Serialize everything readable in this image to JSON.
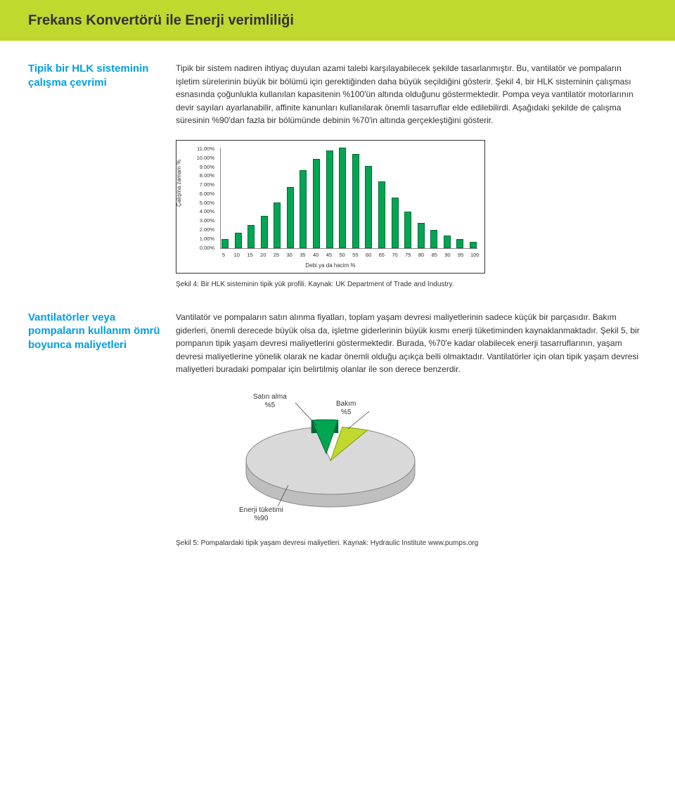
{
  "page": {
    "header_title": "Frekans Konvertörü ile Enerji verimliliği"
  },
  "section1": {
    "title": "Tipik bir HLK sisteminin çalışma çevrimi",
    "body": "Tipik bir sistem nadiren ihtiyaç duyulan azami talebi karşılayabilecek şekilde tasarlanmıştır. Bu, vantilatör ve pompaların işletim sürelerinin büyük bir bölümü için gerektiğinden daha büyük seçildiğini gösterir. Şekil 4, bir HLK sisteminin çalışması esnasında çoğunlukla kullanılan kapasitenin  %100'ün altında olduğunu göstermektedir. Pompa veya vantilatör motorlarının devir sayıları ayarlanabilir, affinite kanunları kullanılarak önemli tasarruflar elde edilebilirdi. Aşağıdaki şekilde de çalışma süresinin %90'dan fazla bir bölümünde debinin %70'in altında gerçekleştiğini gösterir.",
    "chart": {
      "type": "bar",
      "y_axis_label": "Çalışma zamanı %",
      "x_axis_label": "Debi ya da hacim %",
      "y_ticks": [
        "11.00%",
        "10.00%",
        "9.00%",
        "8.00%",
        "7.00%",
        "6.00%",
        "5.00%",
        "4.00%",
        "3.00%",
        "2.00%",
        "1.00%",
        "0.00%"
      ],
      "x_ticks": [
        "5",
        "10",
        "15",
        "20",
        "25",
        "30",
        "35",
        "40",
        "45",
        "50",
        "55",
        "60",
        "65",
        "70",
        "75",
        "80",
        "85",
        "90",
        "95",
        "100"
      ],
      "values": [
        1.0,
        1.7,
        2.5,
        3.5,
        5.0,
        6.7,
        8.5,
        9.8,
        10.7,
        11.0,
        10.3,
        9.0,
        7.3,
        5.5,
        4.0,
        2.8,
        2.0,
        1.4,
        1.0,
        0.7
      ],
      "ylim": [
        0,
        11
      ],
      "bar_fill": "#00a651",
      "bar_stroke": "#006837",
      "border_color": "#333333",
      "axis_color": "#888888",
      "tick_font_size": 7.5,
      "axis_label_font_size": 8
    },
    "caption": "Şekil 4: Bir HLK sisteminin tipik yük profili. Kaynak: UK Department of Trade and Industry."
  },
  "section2": {
    "title": "Vantilatörler veya pompaların kullanım ömrü boyunca maliyetleri",
    "body": "Vantilatör ve pompaların satın alınma fiyatları, toplam yaşam devresi maliyetlerinin sadece küçük bir parçasıdır. Bakım giderleri, önemli derecede büyük olsa da, işletme giderlerinin büyük kısmı enerji tüketiminden kaynaklanmaktadır. Şekil 5, bir pompanın tipik yaşam devresi maliyetlerini göstermektedir. Burada, %70'e kadar olabilecek enerji tasarruflarının, yaşam devresi maliyetlerine yönelik olarak ne kadar önemli olduğu açıkça belli olmaktadır. Vantilatörler için olan tipik yaşam devresi maliyetleri buradaki pompalar için belirtilmiş olanlar ile son derece benzerdir.",
    "pie": {
      "type": "pie",
      "slices": [
        {
          "label_line1": "Enerji tüketimi",
          "label_line2": "%90",
          "value": 90,
          "fill": "#d9d9d9",
          "stroke": "#888888"
        },
        {
          "label_line1": "Satın alma",
          "label_line2": "%5",
          "value": 5,
          "fill": "#00a651",
          "stroke": "#006837"
        },
        {
          "label_line1": "Bakım",
          "label_line2": "%5",
          "value": 5,
          "fill": "#c1d82f",
          "stroke": "#8a9a1f"
        }
      ],
      "explode_index": 1,
      "tilt_3d": true,
      "background": "#ffffff"
    },
    "caption": "Şekil 5: Pompalardaki tipik yaşam devresi maliyetleri. Kaynak: Hydraulic Institute www.pumps.org"
  },
  "colors": {
    "header_bg": "#c1d82f",
    "accent_blue": "#009fe3",
    "text": "#333333"
  }
}
